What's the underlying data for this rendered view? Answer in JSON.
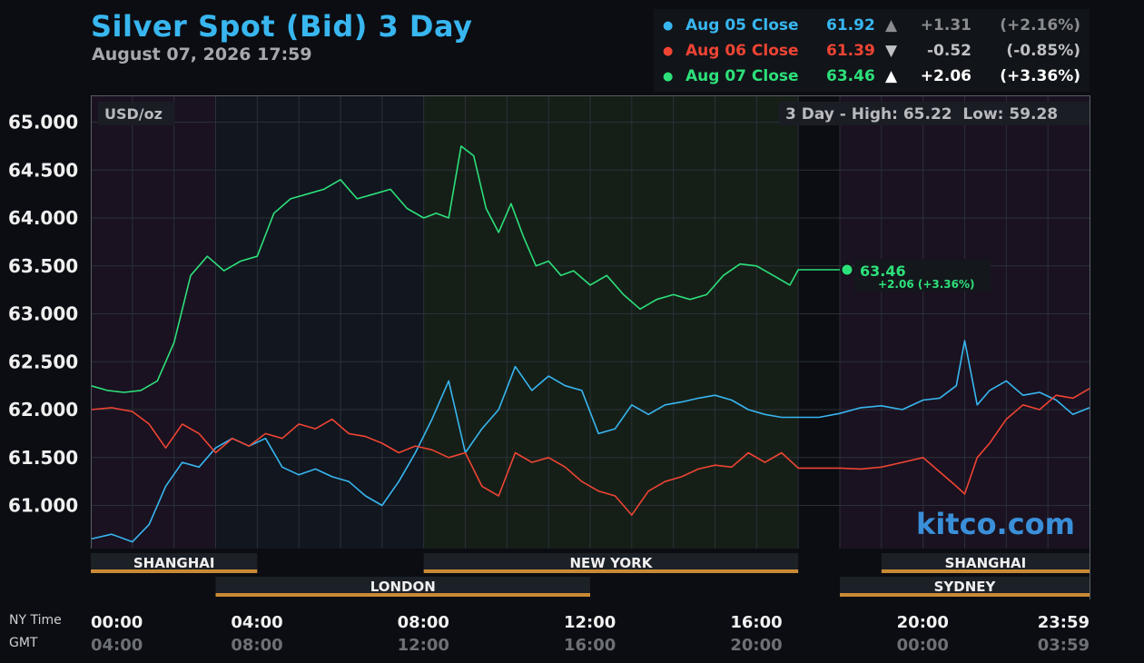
{
  "header": {
    "title": "Silver Spot (Bid) 3 Day",
    "subtitle": "August 07, 2026 17:59"
  },
  "legend": [
    {
      "label": "Aug 05 Close",
      "value": "61.92",
      "arrow": "▲",
      "change": "+1.31",
      "pct": "(+2.16%)",
      "color": "#38b6f0",
      "muted": true
    },
    {
      "label": "Aug 06 Close",
      "value": "61.39",
      "arrow": "▼",
      "change": "-0.52",
      "pct": "(-0.85%)",
      "color": "#ee4433",
      "muted": true
    },
    {
      "label": "Aug 07 Close",
      "value": "63.46",
      "arrow": "▲",
      "change": "+2.06",
      "pct": "(+3.36%)",
      "color": "#2de07a",
      "muted": false
    }
  ],
  "panel": {
    "unit": "USD/oz",
    "high_low": "3 Day - High: 65.22  Low: 59.28",
    "watermark": "kitco.com",
    "current_value": "63.46",
    "current_change": "+2.06 (+3.36%)"
  },
  "sessions_row1": [
    "SHANGHAI",
    "NEW YORK",
    "SHANGHAI"
  ],
  "sessions_row2": [
    "LONDON",
    "SYDNEY"
  ],
  "footer": {
    "ny_label": "NY Time",
    "gmt_label": "GMT",
    "ny_ticks": [
      "00:00",
      "04:00",
      "08:00",
      "12:00",
      "16:00",
      "20:00",
      "23:59"
    ],
    "gmt_ticks": [
      "04:00",
      "08:00",
      "12:00",
      "16:00",
      "20:00",
      "00:00",
      "03:59"
    ]
  },
  "chart_data": {
    "type": "line",
    "ylim": [
      60.55,
      65.28
    ],
    "xlim": [
      0,
      24
    ],
    "y_ticks": [
      "65.000",
      "64.500",
      "64.000",
      "63.500",
      "63.000",
      "62.500",
      "62.000",
      "61.500",
      "61.000"
    ],
    "y_tick_values": [
      65.0,
      64.5,
      64.0,
      63.5,
      63.0,
      62.5,
      62.0,
      61.5,
      61.0
    ],
    "series": [
      {
        "name": "Aug 05 Close",
        "color": "#38b6f0",
        "x": [
          0,
          0.5,
          1,
          1.4,
          1.8,
          2.2,
          2.6,
          3.0,
          3.4,
          3.8,
          4.2,
          4.6,
          5.0,
          5.4,
          5.8,
          6.2,
          6.6,
          7.0,
          7.4,
          7.8,
          8.2,
          8.6,
          9.0,
          9.4,
          9.8,
          10.2,
          10.6,
          11.0,
          11.4,
          11.8,
          12.2,
          12.6,
          13.0,
          13.4,
          13.8,
          14.2,
          14.6,
          15.0,
          15.4,
          15.8,
          16.2,
          16.6,
          17.0,
          17.5,
          18.0,
          18.5,
          19.0,
          19.5,
          20.0,
          20.4,
          20.8,
          21.0,
          21.3,
          21.6,
          22.0,
          22.4,
          22.8,
          23.2,
          23.6,
          24.0
        ],
        "values": [
          60.65,
          60.7,
          60.62,
          60.8,
          61.2,
          61.45,
          61.4,
          61.6,
          61.7,
          61.62,
          61.7,
          61.4,
          61.32,
          61.38,
          61.3,
          61.25,
          61.1,
          61.0,
          61.25,
          61.55,
          61.9,
          62.3,
          61.55,
          61.8,
          62.0,
          62.45,
          62.2,
          62.35,
          62.25,
          62.2,
          61.75,
          61.8,
          62.05,
          61.95,
          62.05,
          62.08,
          62.12,
          62.15,
          62.1,
          62.0,
          61.95,
          61.92,
          61.92,
          61.92,
          61.96,
          62.02,
          62.04,
          62.0,
          62.1,
          62.12,
          62.25,
          62.72,
          62.05,
          62.2,
          62.3,
          62.15,
          62.18,
          62.1,
          61.95,
          62.02
        ]
      },
      {
        "name": "Aug 06 Close",
        "color": "#ee4433",
        "x": [
          0,
          0.5,
          1,
          1.4,
          1.8,
          2.2,
          2.6,
          3.0,
          3.4,
          3.8,
          4.2,
          4.6,
          5.0,
          5.4,
          5.8,
          6.2,
          6.6,
          7.0,
          7.4,
          7.8,
          8.2,
          8.6,
          9.0,
          9.4,
          9.8,
          10.2,
          10.6,
          11.0,
          11.4,
          11.8,
          12.2,
          12.6,
          13.0,
          13.4,
          13.8,
          14.2,
          14.6,
          15.0,
          15.4,
          15.8,
          16.2,
          16.6,
          17.0,
          17.5,
          18.0,
          18.5,
          19.0,
          19.5,
          20.0,
          20.4,
          20.8,
          21.0,
          21.3,
          21.6,
          22.0,
          22.4,
          22.8,
          23.2,
          23.6,
          24.0
        ],
        "values": [
          62.0,
          62.02,
          61.98,
          61.85,
          61.6,
          61.85,
          61.75,
          61.55,
          61.7,
          61.62,
          61.75,
          61.7,
          61.85,
          61.8,
          61.9,
          61.75,
          61.72,
          61.65,
          61.55,
          61.62,
          61.58,
          61.5,
          61.55,
          61.2,
          61.1,
          61.55,
          61.45,
          61.5,
          61.4,
          61.25,
          61.15,
          61.1,
          60.9,
          61.15,
          61.25,
          61.3,
          61.38,
          61.42,
          61.4,
          61.55,
          61.45,
          61.55,
          61.39,
          61.39,
          61.39,
          61.38,
          61.4,
          61.45,
          61.5,
          61.35,
          61.2,
          61.12,
          61.5,
          61.65,
          61.9,
          62.05,
          62.0,
          62.15,
          62.12,
          62.22
        ]
      },
      {
        "name": "Aug 07 Close",
        "color": "#2de07a",
        "x": [
          0,
          0.4,
          0.8,
          1.2,
          1.6,
          2.0,
          2.4,
          2.8,
          3.2,
          3.6,
          4.0,
          4.4,
          4.8,
          5.2,
          5.6,
          6.0,
          6.4,
          6.8,
          7.2,
          7.6,
          8.0,
          8.3,
          8.6,
          8.9,
          9.2,
          9.5,
          9.8,
          10.1,
          10.4,
          10.7,
          11.0,
          11.3,
          11.6,
          12.0,
          12.4,
          12.8,
          13.2,
          13.6,
          14.0,
          14.4,
          14.8,
          15.2,
          15.6,
          16.0,
          16.4,
          16.8,
          17.0,
          18.0
        ],
        "values": [
          62.25,
          62.2,
          62.18,
          62.2,
          62.3,
          62.7,
          63.4,
          63.6,
          63.45,
          63.55,
          63.6,
          64.05,
          64.2,
          64.25,
          64.3,
          64.4,
          64.2,
          64.25,
          64.3,
          64.1,
          64.0,
          64.05,
          64.0,
          64.75,
          64.65,
          64.1,
          63.85,
          64.15,
          63.8,
          63.5,
          63.55,
          63.4,
          63.45,
          63.3,
          63.4,
          63.2,
          63.05,
          63.15,
          63.2,
          63.15,
          63.2,
          63.4,
          63.52,
          63.5,
          63.4,
          63.3,
          63.46,
          63.46
        ]
      }
    ]
  }
}
